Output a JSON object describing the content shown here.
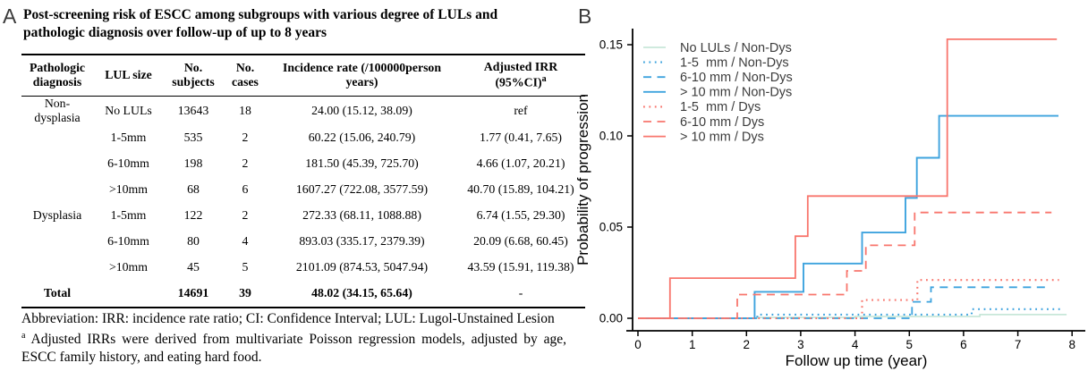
{
  "panel_a": {
    "label": "A",
    "title": "Post-screening risk of ESCC among subgroups with various degree of LULs and pathologic diagnosis over follow-up of up to 8 years",
    "table": {
      "headers": [
        "Pathologic diagnosis",
        "LUL size",
        "No. subjects",
        "No. cases",
        "Incidence rate (/100000person years)",
        "Adjusted IRR (95%CI)"
      ],
      "irr_sup": "a",
      "rows": [
        [
          "Non-dysplasia",
          "No LULs",
          "13643",
          "18",
          "24.00 (15.12, 38.09)",
          "ref"
        ],
        [
          "",
          "1-5mm",
          "535",
          "2",
          "60.22 (15.06, 240.79)",
          "1.77 (0.41, 7.65)"
        ],
        [
          "",
          "6-10mm",
          "198",
          "2",
          "181.50 (45.39, 725.70)",
          "4.66 (1.07, 20.21)"
        ],
        [
          "",
          ">10mm",
          "68",
          "6",
          "1607.27 (722.08, 3577.59)",
          "40.70 (15.89, 104.21)"
        ],
        [
          "Dysplasia",
          "1-5mm",
          "122",
          "2",
          "272.33 (68.11, 1088.88)",
          "6.74 (1.55, 29.30)"
        ],
        [
          "",
          "6-10mm",
          "80",
          "4",
          "893.03 (335.17, 2379.39)",
          "20.09 (6.68, 60.45)"
        ],
        [
          "",
          ">10mm",
          "45",
          "5",
          "2101.09 (874.53, 5047.94)",
          "43.59 (15.91, 119.38)"
        ],
        [
          "Total",
          "",
          "14691",
          "39",
          "48.02 (34.15, 65.64)",
          "-"
        ]
      ]
    },
    "footnotes": {
      "abbreviation": "Abbreviation: IRR: incidence rate ratio; CI: Confidence Interval; LUL: Lugol-Unstained Lesion",
      "note_sup": "a",
      "adjustment_note": "Adjusted IRRs were derived from multivariate Poisson regression models, adjusted by age, ESCC family history, and eating hard food."
    }
  },
  "panel_b": {
    "label": "B"
  },
  "chart_data": {
    "type": "line",
    "subtype": "step",
    "title": "",
    "xlabel": "Follow up time (year)",
    "ylabel": "Probability of progression",
    "xlim": [
      0,
      8
    ],
    "ylim": [
      0,
      0.16
    ],
    "grid": false,
    "legend_position": "top-left-inside",
    "xticks": [
      "0",
      "1",
      "2",
      "3",
      "4",
      "5",
      "6",
      "7",
      "8"
    ],
    "yticks": [
      0,
      0.05,
      0.1,
      0.15
    ],
    "ytick_labels": [
      "0.00",
      "0.05",
      "0.10",
      "0.15"
    ],
    "colors": {
      "non_dys_none": "#bfe3d3",
      "non_dys": "#3ea3de",
      "dys": "#f8766d"
    },
    "series": [
      {
        "name": "No LULs / Non-Dys",
        "color": "#bfe3d3",
        "style": "solid",
        "width": 1.5,
        "points": [
          [
            0,
            0
          ],
          [
            2.2,
            0.0005
          ],
          [
            4.0,
            0.001
          ],
          [
            6.3,
            0.002
          ],
          [
            7.9,
            0.002
          ]
        ]
      },
      {
        "name": "1-5  mm / Non-Dys",
        "color": "#3ea3de",
        "style": "dotted",
        "width": 2.1,
        "points": [
          [
            0,
            0
          ],
          [
            2.2,
            0.002
          ],
          [
            6.15,
            0.005
          ],
          [
            7.85,
            0.005
          ]
        ]
      },
      {
        "name": "6-10 mm / Non-Dys",
        "color": "#3ea3de",
        "style": "dashed",
        "width": 1.8,
        "points": [
          [
            0,
            0
          ],
          [
            5.05,
            0.009
          ],
          [
            5.4,
            0.017
          ],
          [
            7.6,
            0.017
          ]
        ]
      },
      {
        "name": "> 10 mm / Non-Dys",
        "color": "#3ea3de",
        "style": "solid",
        "width": 1.9,
        "points": [
          [
            0,
            0
          ],
          [
            2.15,
            0.0145
          ],
          [
            3.05,
            0.03
          ],
          [
            4.13,
            0.047
          ],
          [
            4.93,
            0.066
          ],
          [
            5.14,
            0.088
          ],
          [
            5.55,
            0.111
          ],
          [
            7.75,
            0.111
          ]
        ]
      },
      {
        "name": "1-5  mm / Dys",
        "color": "#f8766d",
        "style": "dotted",
        "width": 2.1,
        "points": [
          [
            0,
            0
          ],
          [
            4.13,
            0.01
          ],
          [
            5.15,
            0.021
          ],
          [
            7.76,
            0.021
          ]
        ]
      },
      {
        "name": "6-10 mm / Dys",
        "color": "#f8766d",
        "style": "dashed",
        "width": 1.8,
        "points": [
          [
            0,
            0
          ],
          [
            1.83,
            0.013
          ],
          [
            3.85,
            0.026
          ],
          [
            4.2,
            0.04
          ],
          [
            5.1,
            0.058
          ],
          [
            7.62,
            0.058
          ]
        ]
      },
      {
        "name": "> 10 mm / Dys",
        "color": "#f8766d",
        "style": "solid",
        "width": 1.8,
        "points": [
          [
            0,
            0
          ],
          [
            0.59,
            0.022
          ],
          [
            2.9,
            0.045
          ],
          [
            3.13,
            0.067
          ],
          [
            5.7,
            0.153
          ],
          [
            7.72,
            0.153
          ]
        ]
      }
    ]
  }
}
